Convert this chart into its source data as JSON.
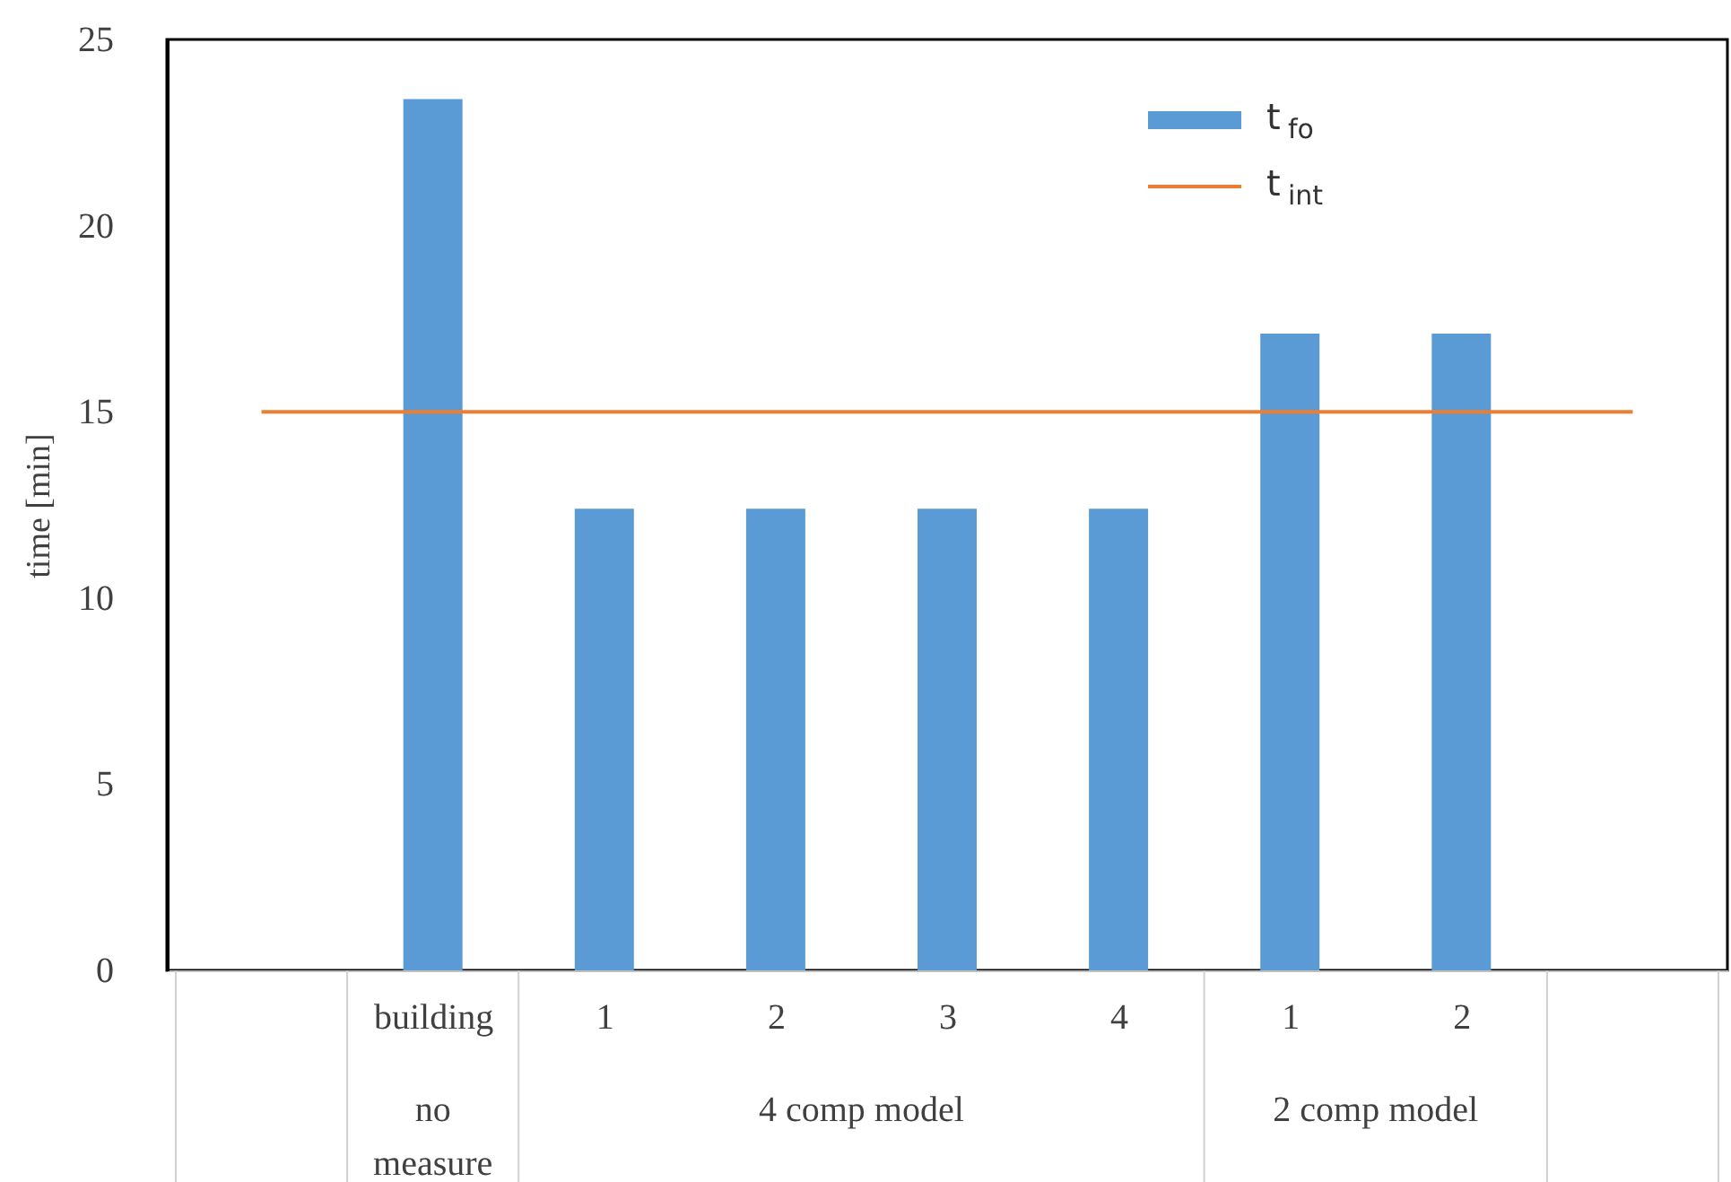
{
  "chart_data": {
    "type": "bar",
    "ylabel": "time [min]",
    "categories": [
      null,
      "building",
      "1",
      "2",
      "3",
      "4",
      "1",
      "2",
      null
    ],
    "series": [
      {
        "name": "t$_{fo}$",
        "color": "#5b9bd5",
        "values": [
          null,
          23.4,
          12.4,
          12.4,
          12.4,
          12.4,
          17.1,
          17.1,
          null
        ]
      },
      {
        "name": "t$_{int}$",
        "type": "line",
        "color": "#ed7d31",
        "values": [
          15,
          15,
          15,
          15,
          15,
          15,
          15,
          15,
          15
        ]
      }
    ],
    "annotations": [
      "no measure",
      "4 comp model",
      "2 comp model"
    ],
    "ylim": [
      0,
      25
    ],
    "yticks": [
      0,
      5,
      10,
      15,
      20,
      25
    ],
    "grid": false,
    "legend": "top right"
  }
}
